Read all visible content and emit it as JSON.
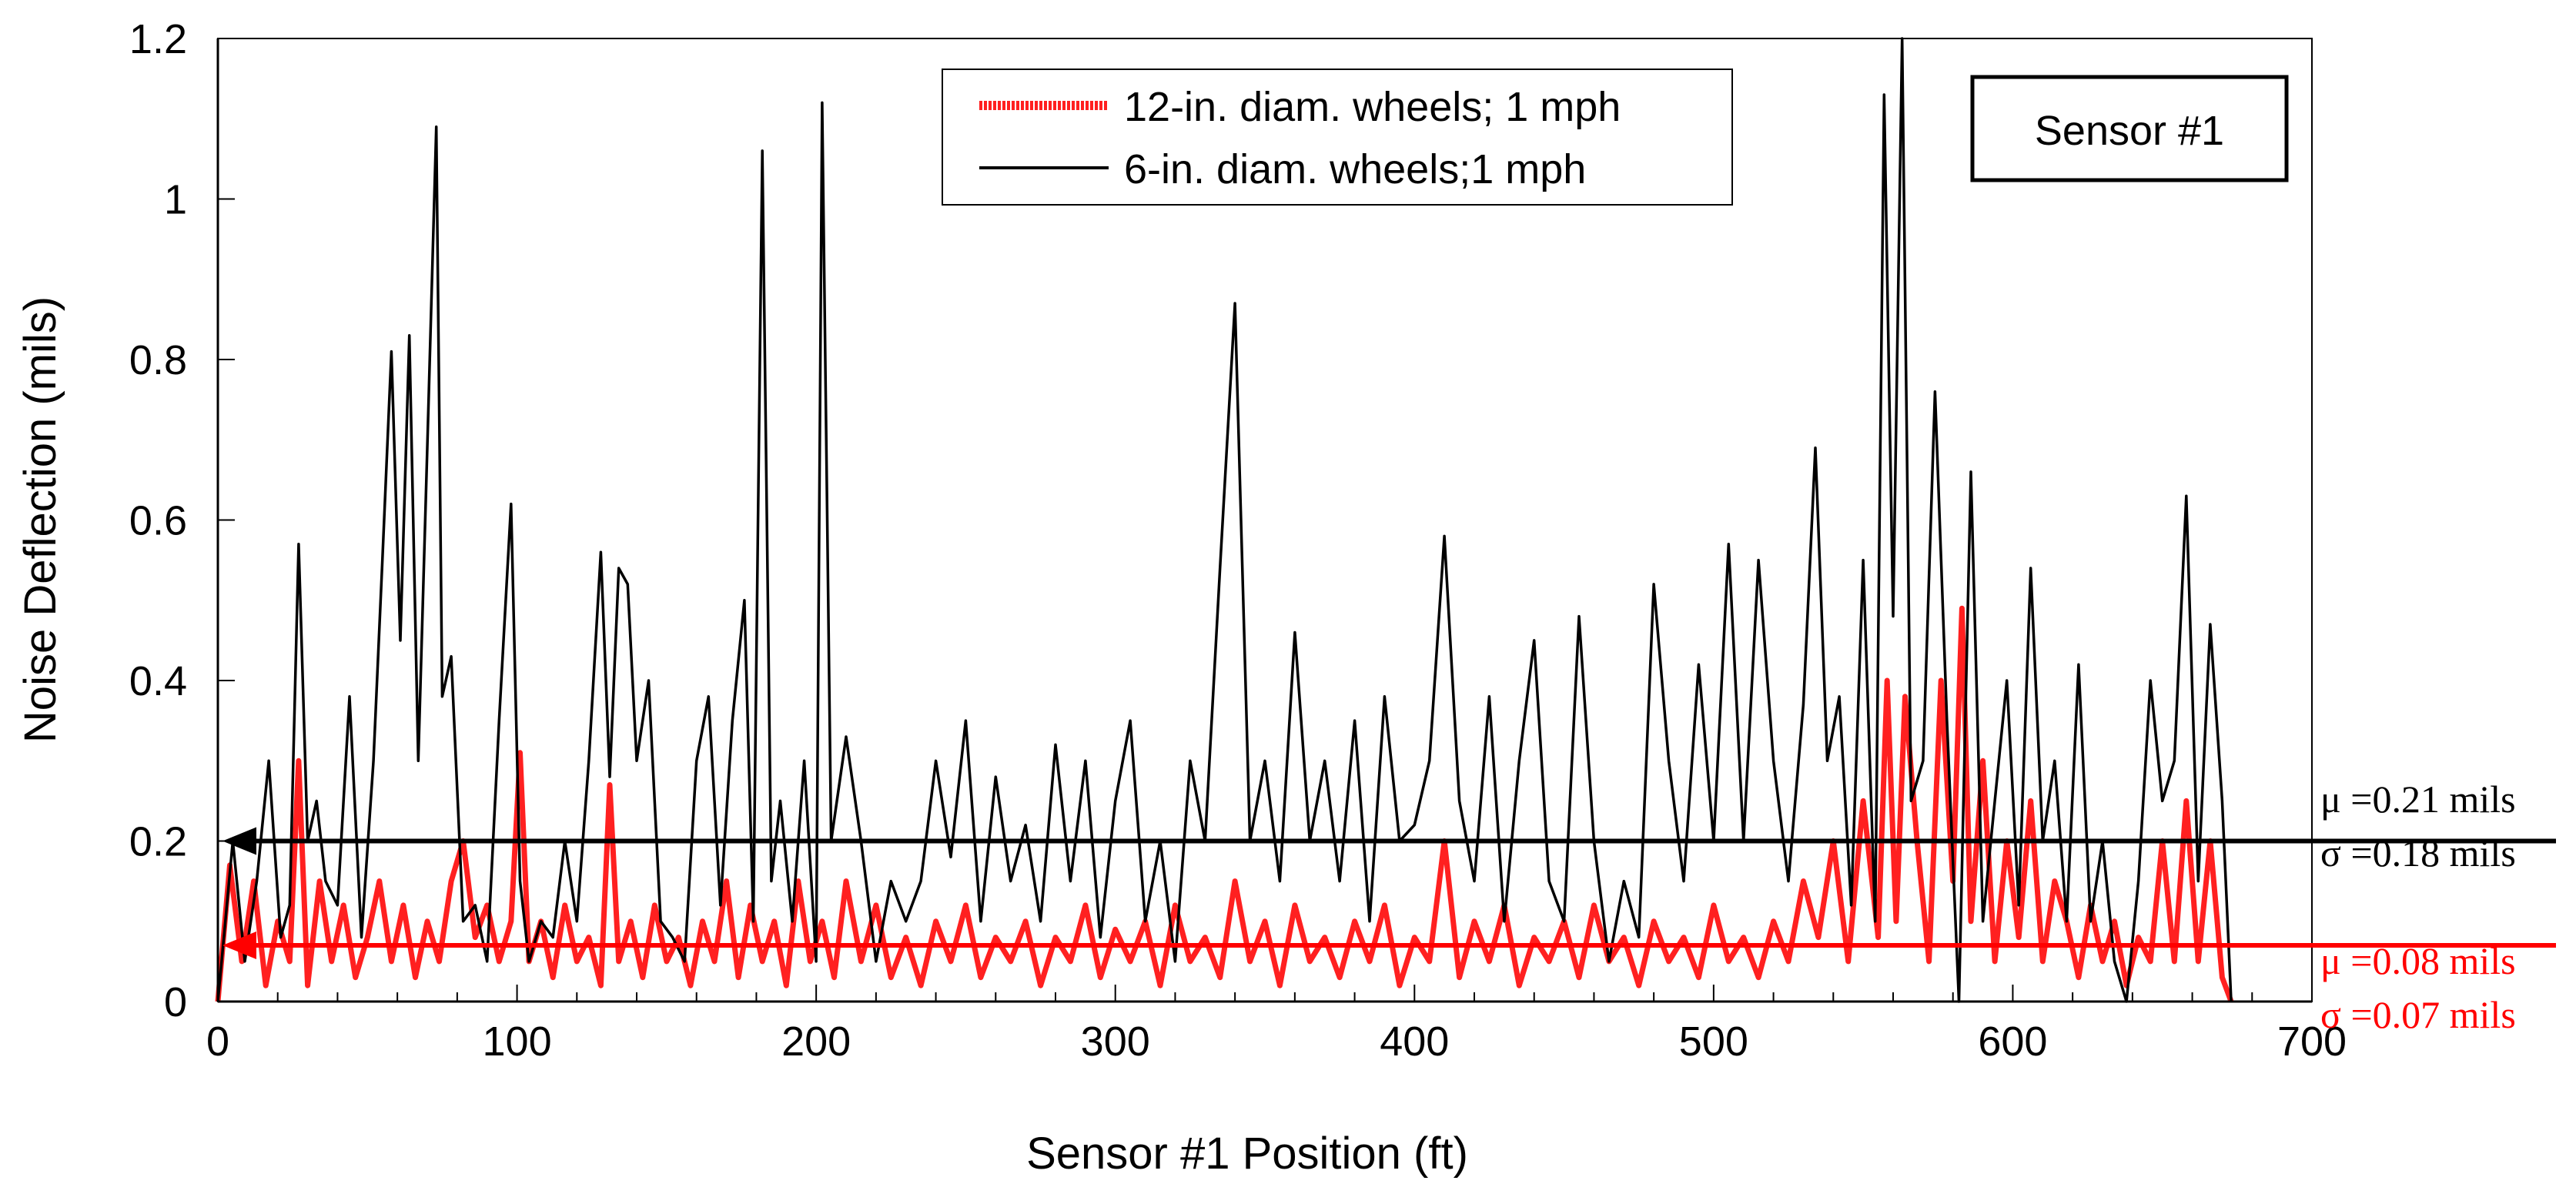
{
  "chart_data": {
    "type": "line",
    "title": "",
    "xlabel": "Sensor #1 Position (ft)",
    "ylabel": "Noise Deflection (mils)",
    "xlim": [
      0,
      700
    ],
    "ylim": [
      0,
      1.2
    ],
    "x_ticks": [
      "0",
      "100",
      "200",
      "300",
      "400",
      "500",
      "600",
      "700"
    ],
    "y_ticks": [
      "0",
      "0.2",
      "0.4",
      "0.6",
      "0.8",
      "1",
      "1.2"
    ],
    "box_label": "Sensor #1",
    "legend": {
      "position": "top-center",
      "entries": [
        "12-in. diam. wheels; 1 mph",
        "6-in. diam. wheels;1 mph"
      ]
    },
    "colors": {
      "series_12in": "#ff2020",
      "series_6in": "#000000",
      "axis": "#000000",
      "annotation_red": "#ff0000"
    },
    "reference_lines": [
      {
        "series": "6-in. diam. wheels;1 mph",
        "value": 0.2,
        "mu_label": "μ =0.21 mils",
        "sigma_label": "σ =0.18 mils"
      },
      {
        "series": "12-in. diam. wheels; 1 mph",
        "value": 0.07,
        "mu_label": "μ =0.08 mils",
        "sigma_label": "σ =0.07 mils"
      }
    ],
    "series": [
      {
        "name": "6-in. diam. wheels;1 mph",
        "x": [
          0,
          5,
          9,
          13,
          17,
          21,
          24,
          27,
          30,
          33,
          36,
          40,
          44,
          48,
          52,
          55,
          58,
          61,
          64,
          67,
          70,
          73,
          75,
          78,
          82,
          86,
          90,
          94,
          98,
          101,
          104,
          108,
          112,
          116,
          120,
          124,
          128,
          131,
          134,
          137,
          140,
          144,
          148,
          152,
          156,
          160,
          164,
          168,
          172,
          176,
          179,
          182,
          185,
          188,
          192,
          196,
          200,
          202,
          205,
          210,
          215,
          220,
          225,
          230,
          235,
          240,
          245,
          250,
          255,
          260,
          265,
          270,
          275,
          280,
          285,
          290,
          295,
          300,
          305,
          310,
          315,
          320,
          325,
          330,
          335,
          340,
          345,
          350,
          355,
          360,
          365,
          370,
          375,
          380,
          385,
          390,
          395,
          400,
          405,
          410,
          415,
          420,
          425,
          430,
          435,
          440,
          445,
          450,
          455,
          460,
          465,
          470,
          475,
          480,
          485,
          490,
          495,
          500,
          505,
          510,
          515,
          520,
          525,
          530,
          534,
          538,
          542,
          546,
          550,
          554,
          557,
          560,
          563,
          566,
          570,
          574,
          578,
          582,
          586,
          590,
          594,
          598,
          602,
          606,
          610,
          614,
          618,
          622,
          626,
          630,
          634,
          638,
          642,
          646,
          650,
          654,
          658,
          662,
          666,
          670,
          673
        ],
        "values": [
          0.0,
          0.2,
          0.05,
          0.15,
          0.3,
          0.08,
          0.12,
          0.57,
          0.2,
          0.25,
          0.15,
          0.12,
          0.38,
          0.08,
          0.3,
          0.55,
          0.81,
          0.45,
          0.83,
          0.3,
          0.69,
          1.09,
          0.38,
          0.43,
          0.1,
          0.12,
          0.05,
          0.35,
          0.62,
          0.15,
          0.05,
          0.1,
          0.08,
          0.2,
          0.1,
          0.3,
          0.56,
          0.28,
          0.54,
          0.52,
          0.3,
          0.4,
          0.1,
          0.08,
          0.05,
          0.3,
          0.38,
          0.12,
          0.35,
          0.5,
          0.1,
          1.06,
          0.15,
          0.25,
          0.1,
          0.3,
          0.05,
          1.12,
          0.2,
          0.33,
          0.2,
          0.05,
          0.15,
          0.1,
          0.15,
          0.3,
          0.18,
          0.35,
          0.1,
          0.28,
          0.15,
          0.22,
          0.1,
          0.32,
          0.15,
          0.3,
          0.08,
          0.25,
          0.35,
          0.1,
          0.2,
          0.05,
          0.3,
          0.2,
          0.54,
          0.87,
          0.2,
          0.3,
          0.15,
          0.46,
          0.2,
          0.3,
          0.15,
          0.35,
          0.1,
          0.38,
          0.2,
          0.22,
          0.3,
          0.58,
          0.25,
          0.15,
          0.38,
          0.1,
          0.3,
          0.45,
          0.15,
          0.1,
          0.48,
          0.2,
          0.05,
          0.15,
          0.08,
          0.52,
          0.3,
          0.15,
          0.42,
          0.2,
          0.57,
          0.2,
          0.55,
          0.3,
          0.15,
          0.37,
          0.69,
          0.3,
          0.38,
          0.12,
          0.55,
          0.1,
          1.13,
          0.48,
          1.2,
          0.25,
          0.3,
          0.76,
          0.35,
          0.0,
          0.66,
          0.1,
          0.25,
          0.4,
          0.12,
          0.54,
          0.2,
          0.3,
          0.1,
          0.42,
          0.1,
          0.2,
          0.05,
          0.0,
          0.15,
          0.4,
          0.25,
          0.3,
          0.63,
          0.15,
          0.47,
          0.25,
          0.0
        ]
      },
      {
        "name": "12-in. diam. wheels; 1 mph",
        "x": [
          0,
          4,
          8,
          12,
          16,
          20,
          24,
          27,
          30,
          34,
          38,
          42,
          46,
          50,
          54,
          58,
          62,
          66,
          70,
          74,
          78,
          82,
          86,
          90,
          94,
          98,
          101,
          104,
          108,
          112,
          116,
          120,
          124,
          128,
          131,
          134,
          138,
          142,
          146,
          150,
          154,
          158,
          162,
          166,
          170,
          174,
          178,
          182,
          186,
          190,
          194,
          198,
          202,
          206,
          210,
          215,
          220,
          225,
          230,
          235,
          240,
          245,
          250,
          255,
          260,
          265,
          270,
          275,
          280,
          285,
          290,
          295,
          300,
          305,
          310,
          315,
          320,
          325,
          330,
          335,
          340,
          345,
          350,
          355,
          360,
          365,
          370,
          375,
          380,
          385,
          390,
          395,
          400,
          405,
          410,
          415,
          420,
          425,
          430,
          435,
          440,
          445,
          450,
          455,
          460,
          465,
          470,
          475,
          480,
          485,
          490,
          495,
          500,
          505,
          510,
          515,
          520,
          525,
          530,
          535,
          540,
          545,
          550,
          555,
          558,
          561,
          564,
          568,
          572,
          576,
          580,
          583,
          586,
          590,
          594,
          598,
          602,
          606,
          610,
          614,
          618,
          622,
          626,
          630,
          634,
          638,
          642,
          646,
          650,
          654,
          658,
          662,
          666,
          670,
          673
        ],
        "values": [
          0.0,
          0.17,
          0.05,
          0.15,
          0.02,
          0.1,
          0.05,
          0.3,
          0.02,
          0.15,
          0.05,
          0.12,
          0.03,
          0.08,
          0.15,
          0.05,
          0.12,
          0.03,
          0.1,
          0.05,
          0.15,
          0.2,
          0.08,
          0.12,
          0.05,
          0.1,
          0.31,
          0.05,
          0.1,
          0.03,
          0.12,
          0.05,
          0.08,
          0.02,
          0.27,
          0.05,
          0.1,
          0.03,
          0.12,
          0.05,
          0.08,
          0.02,
          0.1,
          0.05,
          0.15,
          0.03,
          0.12,
          0.05,
          0.1,
          0.02,
          0.15,
          0.05,
          0.1,
          0.03,
          0.15,
          0.05,
          0.12,
          0.03,
          0.08,
          0.02,
          0.1,
          0.05,
          0.12,
          0.03,
          0.08,
          0.05,
          0.1,
          0.02,
          0.08,
          0.05,
          0.12,
          0.03,
          0.09,
          0.05,
          0.1,
          0.02,
          0.12,
          0.05,
          0.08,
          0.03,
          0.15,
          0.05,
          0.1,
          0.02,
          0.12,
          0.05,
          0.08,
          0.03,
          0.1,
          0.05,
          0.12,
          0.02,
          0.08,
          0.05,
          0.2,
          0.03,
          0.1,
          0.05,
          0.12,
          0.02,
          0.08,
          0.05,
          0.1,
          0.03,
          0.12,
          0.05,
          0.08,
          0.02,
          0.1,
          0.05,
          0.08,
          0.03,
          0.12,
          0.05,
          0.08,
          0.03,
          0.1,
          0.05,
          0.15,
          0.08,
          0.2,
          0.05,
          0.25,
          0.08,
          0.4,
          0.1,
          0.38,
          0.2,
          0.05,
          0.4,
          0.15,
          0.49,
          0.1,
          0.3,
          0.05,
          0.2,
          0.08,
          0.25,
          0.05,
          0.15,
          0.1,
          0.03,
          0.12,
          0.05,
          0.1,
          0.02,
          0.08,
          0.05,
          0.2,
          0.05,
          0.25,
          0.05,
          0.2,
          0.03,
          0.0
        ]
      }
    ]
  }
}
